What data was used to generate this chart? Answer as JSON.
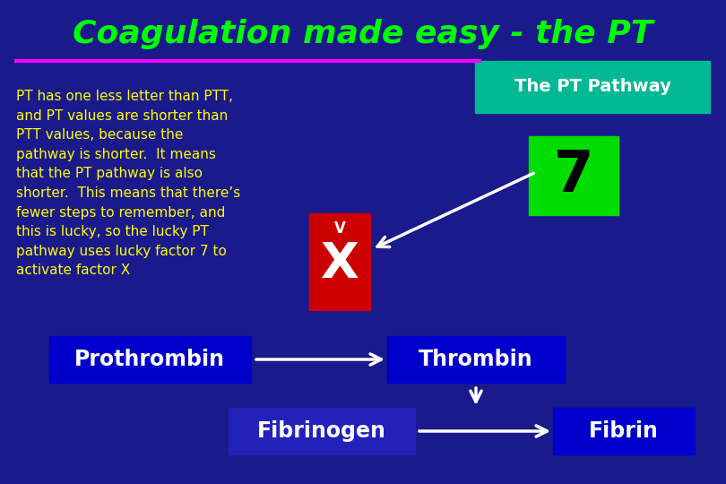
{
  "bg_color": "#1a1a8c",
  "title": "Coagulation made easy - the PT",
  "title_color": "#00ff00",
  "title_fontsize": 26,
  "line_color": "#ff00ff",
  "body_text": "PT has one less letter than PTT,\nand PT values are shorter than\nPTT values, because the\npathway is shorter.  It means\nthat the PT pathway is also\nshorter.  This means that there’s\nfewer steps to remember, and\nthis is lucky, so the lucky PT\npathway uses lucky factor 7 to\nactivate factor X",
  "body_text_color": "#ffff00",
  "body_text_fontsize": 11,
  "pathway_box_color": "#00b894",
  "pathway_box_text": "The PT Pathway",
  "pathway_box_text_color": "#ffffff",
  "seven_box_color": "#00dd00",
  "seven_text": "7",
  "seven_text_color": "#000000",
  "x_box_color": "#cc0000",
  "x_text_v": "V",
  "x_text_x": "X",
  "x_text_color": "#ffffff",
  "prothrombin_box_color": "#0000cc",
  "prothrombin_text": "Prothrombin",
  "thrombin_box_color": "#0000cc",
  "thrombin_text": "Thrombin",
  "fibrinogen_box_color": "#2222bb",
  "fibrinogen_text": "Fibrinogen",
  "fibrin_box_color": "#0000cc",
  "fibrin_text": "Fibrin",
  "box_text_color": "#ffffff",
  "arrow_color": "#ffffff"
}
